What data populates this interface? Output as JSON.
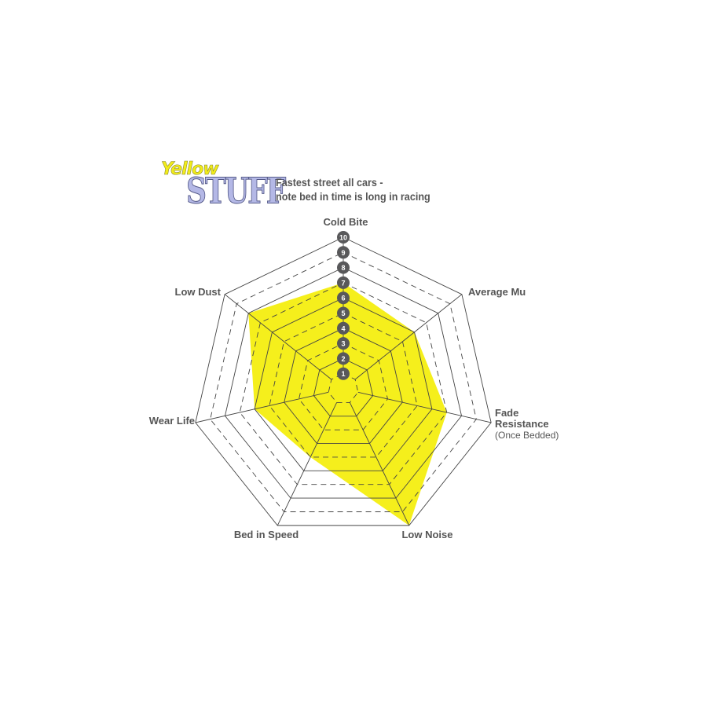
{
  "logo": {
    "line1": "Yellow",
    "line2": "STUFF"
  },
  "subtitle": [
    "Fastest street all cars -",
    "note bed in time is long in racing"
  ],
  "chart_data": {
    "type": "radar",
    "title": "",
    "axes": [
      {
        "label": "Cold Bite",
        "sublabel": ""
      },
      {
        "label": "Average Mu",
        "sublabel": ""
      },
      {
        "label": "Fade Resistance",
        "sublabel": "(Once Bedded)"
      },
      {
        "label": "Low Noise",
        "sublabel": ""
      },
      {
        "label": "Bed in Speed",
        "sublabel": ""
      },
      {
        "label": "Wear Life",
        "sublabel": ""
      },
      {
        "label": "Low Dust",
        "sublabel": ""
      }
    ],
    "values": [
      7,
      6,
      7,
      10,
      5,
      6,
      8
    ],
    "scale": {
      "min": 0,
      "max": 10,
      "ticks": [
        "1",
        "2",
        "3",
        "4",
        "5",
        "6",
        "7",
        "8",
        "9",
        "10"
      ]
    },
    "fill_color": "#f5ef1c",
    "grid_color": "#444444",
    "marker_color": "#58585a"
  }
}
